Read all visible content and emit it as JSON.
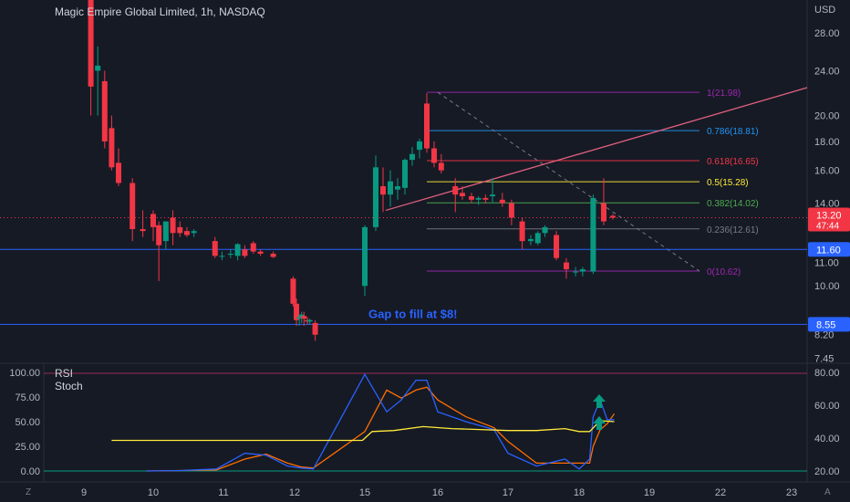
{
  "header": {
    "title": "Magic Empire Global Limited, 1h, NASDAQ",
    "currency": "USD",
    "corner_left": "Z",
    "corner_right": "A"
  },
  "indicators": {
    "rsi_label": "RSI",
    "stoch_label": "Stoch"
  },
  "chart_data": {
    "type": "candlestick",
    "title": "Magic Empire Global Limited, 1h, NASDAQ",
    "price_axis": {
      "ticks": [
        28.0,
        24.0,
        20.0,
        18.0,
        16.0,
        14.0,
        11.0,
        10.0,
        8.2,
        7.45
      ],
      "tick_labels": [
        "28.00",
        "24.00",
        "20.00",
        "18.00",
        "16.00",
        "14.00",
        "11.00",
        "10.00",
        "8.20",
        "7.45"
      ],
      "scale": "log",
      "range": [
        7.3,
        32
      ]
    },
    "x_axis": {
      "ticks": [
        9,
        10,
        11,
        12,
        15,
        16,
        17,
        18,
        19,
        22,
        23
      ],
      "tick_labels": [
        "9",
        "10",
        "11",
        "12",
        "15",
        "16",
        "17",
        "18",
        "19",
        "22",
        "23"
      ]
    },
    "candles": [
      {
        "x": 9.1,
        "o": 34,
        "h": 36,
        "l": 20,
        "c": 22.5
      },
      {
        "x": 9.2,
        "o": 24,
        "h": 26.5,
        "l": 20,
        "c": 24.5
      },
      {
        "x": 9.3,
        "o": 23,
        "h": 24,
        "l": 17.5,
        "c": 18
      },
      {
        "x": 9.4,
        "o": 19,
        "h": 20,
        "l": 16,
        "c": 16.2
      },
      {
        "x": 9.5,
        "o": 16.5,
        "h": 17.5,
        "l": 15,
        "c": 15.2
      },
      {
        "x": 9.7,
        "o": 15.2,
        "h": 15.5,
        "l": 12,
        "c": 12.6
      },
      {
        "x": 9.85,
        "o": 12.6,
        "h": 13.6,
        "l": 12.2,
        "c": 12.5
      },
      {
        "x": 10.0,
        "o": 13.4,
        "h": 13.6,
        "l": 12,
        "c": 12.7
      },
      {
        "x": 10.08,
        "o": 12.8,
        "h": 13,
        "l": 10.2,
        "c": 11.8
      },
      {
        "x": 10.18,
        "o": 12.0,
        "h": 13.0,
        "l": 11.6,
        "c": 13.0
      },
      {
        "x": 10.28,
        "o": 13.2,
        "h": 13.6,
        "l": 11.8,
        "c": 12.4
      },
      {
        "x": 10.38,
        "o": 12.7,
        "h": 13.0,
        "l": 12.2,
        "c": 12.4
      },
      {
        "x": 10.48,
        "o": 12.5,
        "h": 12.7,
        "l": 12.2,
        "c": 12.3
      },
      {
        "x": 10.58,
        "o": 12.4,
        "h": 12.6,
        "l": 12.2,
        "c": 12.5
      },
      {
        "x": 10.88,
        "o": 12.0,
        "h": 12.2,
        "l": 11.2,
        "c": 11.3
      },
      {
        "x": 10.98,
        "o": 11.3,
        "h": 11.5,
        "l": 11.1,
        "c": 11.3
      },
      {
        "x": 11.1,
        "o": 11.35,
        "h": 11.6,
        "l": 11.2,
        "c": 11.4
      },
      {
        "x": 11.2,
        "o": 11.3,
        "h": 11.9,
        "l": 11.1,
        "c": 11.85
      },
      {
        "x": 11.3,
        "o": 11.6,
        "h": 11.8,
        "l": 11.2,
        "c": 11.3
      },
      {
        "x": 11.42,
        "o": 11.9,
        "h": 12.0,
        "l": 11.4,
        "c": 11.5
      },
      {
        "x": 11.52,
        "o": 11.5,
        "h": 11.6,
        "l": 11.3,
        "c": 11.4
      },
      {
        "x": 11.7,
        "o": 11.4,
        "h": 11.5,
        "l": 11.2,
        "c": 11.25
      },
      {
        "x": 11.98,
        "o": 10.3,
        "h": 10.4,
        "l": 9.2,
        "c": 9.3
      },
      {
        "x": 12.08,
        "o": 9.3,
        "h": 9.5,
        "l": 8.5,
        "c": 8.7
      },
      {
        "x": 12.2,
        "o": 8.75,
        "h": 8.9,
        "l": 8.5,
        "c": 8.8
      },
      {
        "x": 12.3,
        "o": 8.8,
        "h": 9.0,
        "l": 8.6,
        "c": 8.9
      },
      {
        "x": 12.4,
        "o": 8.85,
        "h": 9.0,
        "l": 8.5,
        "c": 8.75
      },
      {
        "x": 12.55,
        "o": 8.7,
        "h": 8.8,
        "l": 8.55,
        "c": 8.65
      },
      {
        "x": 12.65,
        "o": 8.65,
        "h": 8.75,
        "l": 8.55,
        "c": 8.7
      },
      {
        "x": 12.88,
        "o": 8.6,
        "h": 8.7,
        "l": 8.0,
        "c": 8.2
      },
      {
        "x": 15.0,
        "o": 10.0,
        "h": 12.8,
        "l": 9.6,
        "c": 12.7
      },
      {
        "x": 15.15,
        "o": 12.7,
        "h": 17.0,
        "l": 12.5,
        "c": 16.2
      },
      {
        "x": 15.25,
        "o": 15.0,
        "h": 16.2,
        "l": 13.5,
        "c": 14.5
      },
      {
        "x": 15.35,
        "o": 14.5,
        "h": 16.0,
        "l": 13.8,
        "c": 15.3
      },
      {
        "x": 15.45,
        "o": 14.8,
        "h": 15.5,
        "l": 14.2,
        "c": 15.0
      },
      {
        "x": 15.55,
        "o": 14.9,
        "h": 16.8,
        "l": 14.5,
        "c": 16.7
      },
      {
        "x": 15.65,
        "o": 16.7,
        "h": 17.6,
        "l": 16.3,
        "c": 17.1
      },
      {
        "x": 15.75,
        "o": 17.4,
        "h": 18.2,
        "l": 16.8,
        "c": 18.0
      },
      {
        "x": 15.85,
        "o": 21.0,
        "h": 21.9,
        "l": 17.2,
        "c": 17.5
      },
      {
        "x": 15.95,
        "o": 17.5,
        "h": 18.0,
        "l": 16.2,
        "c": 16.5
      },
      {
        "x": 16.05,
        "o": 16.5,
        "h": 17.1,
        "l": 15.8,
        "c": 16.0
      },
      {
        "x": 16.25,
        "o": 15.0,
        "h": 15.5,
        "l": 13.5,
        "c": 14.5
      },
      {
        "x": 16.35,
        "o": 14.6,
        "h": 15.0,
        "l": 14.2,
        "c": 14.4
      },
      {
        "x": 16.48,
        "o": 14.4,
        "h": 14.6,
        "l": 14.0,
        "c": 14.2
      },
      {
        "x": 16.58,
        "o": 14.2,
        "h": 14.4,
        "l": 13.9,
        "c": 14.3
      },
      {
        "x": 16.68,
        "o": 14.3,
        "h": 14.5,
        "l": 14.0,
        "c": 14.2
      },
      {
        "x": 16.78,
        "o": 14.4,
        "h": 15.5,
        "l": 14.0,
        "c": 14.5
      },
      {
        "x": 16.92,
        "o": 14.2,
        "h": 14.6,
        "l": 13.8,
        "c": 14.0
      },
      {
        "x": 17.05,
        "o": 14.0,
        "h": 14.2,
        "l": 12.8,
        "c": 13.2
      },
      {
        "x": 17.2,
        "o": 13.0,
        "h": 13.2,
        "l": 11.6,
        "c": 12.0
      },
      {
        "x": 17.32,
        "o": 12.0,
        "h": 12.3,
        "l": 11.8,
        "c": 12.1
      },
      {
        "x": 17.42,
        "o": 11.9,
        "h": 12.5,
        "l": 11.8,
        "c": 12.4
      },
      {
        "x": 17.52,
        "o": 12.4,
        "h": 12.8,
        "l": 12.2,
        "c": 12.7
      },
      {
        "x": 17.68,
        "o": 12.3,
        "h": 12.5,
        "l": 11.1,
        "c": 11.2
      },
      {
        "x": 17.82,
        "o": 11.0,
        "h": 11.2,
        "l": 10.3,
        "c": 10.7
      },
      {
        "x": 17.95,
        "o": 10.6,
        "h": 10.8,
        "l": 10.4,
        "c": 10.6
      },
      {
        "x": 18.05,
        "o": 10.6,
        "h": 10.8,
        "l": 10.4,
        "c": 10.7
      },
      {
        "x": 18.2,
        "o": 10.6,
        "h": 14.5,
        "l": 10.5,
        "c": 14.3
      },
      {
        "x": 18.35,
        "o": 14.0,
        "h": 15.5,
        "l": 12.8,
        "c": 13.0
      },
      {
        "x": 18.48,
        "o": 13.3,
        "h": 13.4,
        "l": 13.1,
        "c": 13.2
      }
    ],
    "levels": [
      {
        "name": "resistance",
        "price": 11.6,
        "label": "11.60",
        "color": "#2962ff"
      },
      {
        "name": "gap",
        "price": 8.55,
        "label": "8.55",
        "color": "#2962ff"
      }
    ],
    "current_price": {
      "price": 13.2,
      "label": "13.20",
      "countdown": "47:44",
      "color": "#f23645"
    },
    "fibonacci": [
      {
        "ratio": "1",
        "price": 21.98,
        "label": "1(21.98)",
        "color": "#9c27b0"
      },
      {
        "ratio": "0.786",
        "price": 18.81,
        "label": "0.786(18.81)",
        "color": "#2196f3"
      },
      {
        "ratio": "0.618",
        "price": 16.65,
        "label": "0.618(16.65)",
        "color": "#f23645"
      },
      {
        "ratio": "0.5",
        "price": 15.28,
        "label": "0.5(15.28)",
        "color": "#ffeb3b"
      },
      {
        "ratio": "0.382",
        "price": 14.02,
        "label": "0.382(14.02)",
        "color": "#4caf50"
      },
      {
        "ratio": "0.236",
        "price": 12.61,
        "label": "0.236(12.61)",
        "color": "#787b86"
      },
      {
        "ratio": "0",
        "price": 10.62,
        "label": "0(10.62)",
        "color": "#9c27b0"
      }
    ],
    "annotation": {
      "text": "Gap to fill at $8!",
      "color": "#2962ff"
    },
    "rsi_pane": {
      "left_ticks": [
        "100.00",
        "75.00",
        "50.00",
        "25.00",
        "0.00"
      ],
      "right_ticks": [
        "80.00",
        "60.00",
        "40.00",
        "20.00"
      ],
      "stoch_k": [
        [
          9.9,
          0
        ],
        [
          10.4,
          0.5
        ],
        [
          10.9,
          2
        ],
        [
          11.3,
          18
        ],
        [
          11.6,
          16
        ],
        [
          11.9,
          5
        ],
        [
          12.3,
          3
        ],
        [
          12.8,
          2
        ],
        [
          15.0,
          98
        ],
        [
          15.3,
          60
        ],
        [
          15.5,
          72
        ],
        [
          15.7,
          92
        ],
        [
          15.85,
          92
        ],
        [
          16.0,
          60
        ],
        [
          16.4,
          50
        ],
        [
          16.8,
          42
        ],
        [
          17.0,
          18
        ],
        [
          17.4,
          5
        ],
        [
          17.8,
          12
        ],
        [
          18.0,
          2
        ],
        [
          18.15,
          12
        ],
        [
          18.2,
          55
        ],
        [
          18.3,
          72
        ],
        [
          18.4,
          52
        ],
        [
          18.5,
          52
        ]
      ],
      "stoch_d": [
        [
          9.9,
          0
        ],
        [
          10.4,
          0.5
        ],
        [
          10.9,
          1
        ],
        [
          11.3,
          12
        ],
        [
          11.6,
          17
        ],
        [
          11.9,
          8
        ],
        [
          12.3,
          4
        ],
        [
          12.8,
          3
        ],
        [
          15.0,
          40
        ],
        [
          15.3,
          82
        ],
        [
          15.5,
          74
        ],
        [
          15.7,
          82
        ],
        [
          15.85,
          85
        ],
        [
          16.0,
          72
        ],
        [
          16.4,
          55
        ],
        [
          16.8,
          44
        ],
        [
          17.0,
          30
        ],
        [
          17.4,
          8
        ],
        [
          17.8,
          8
        ],
        [
          18.0,
          8
        ],
        [
          18.15,
          8
        ],
        [
          18.2,
          25
        ],
        [
          18.3,
          42
        ],
        [
          18.4,
          48
        ],
        [
          18.5,
          58
        ]
      ],
      "rsi": [
        [
          9.4,
          31
        ],
        [
          10.5,
          31
        ],
        [
          11.5,
          31
        ],
        [
          12.5,
          31
        ],
        [
          14.9,
          31
        ],
        [
          15.1,
          40
        ],
        [
          15.4,
          41
        ],
        [
          15.8,
          45
        ],
        [
          16.2,
          43
        ],
        [
          16.6,
          42
        ],
        [
          17.0,
          41
        ],
        [
          17.4,
          41
        ],
        [
          17.8,
          43
        ],
        [
          18.0,
          40
        ],
        [
          18.15,
          40
        ],
        [
          18.3,
          51
        ],
        [
          18.5,
          50
        ]
      ]
    }
  }
}
